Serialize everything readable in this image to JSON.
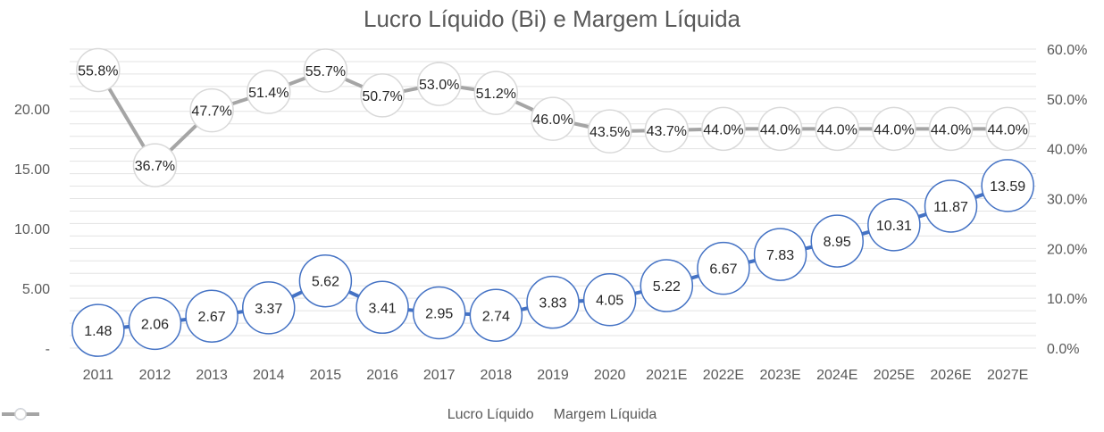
{
  "chart_data": {
    "type": "line",
    "title": "Lucro Líquido (Bi) e Margem Líquida",
    "categories": [
      "2011",
      "2012",
      "2013",
      "2014",
      "2015",
      "2016",
      "2017",
      "2018",
      "2019",
      "2020",
      "2021E",
      "2022E",
      "2023E",
      "2024E",
      "2025E",
      "2026E",
      "2027E"
    ],
    "series": [
      {
        "name": "Lucro Líquido",
        "axis": "left",
        "color": "#4472C4",
        "values": [
          1.48,
          2.06,
          2.67,
          3.37,
          5.62,
          3.41,
          2.95,
          2.74,
          3.83,
          4.05,
          5.22,
          6.67,
          7.83,
          8.95,
          10.31,
          11.87,
          13.59
        ],
        "labels": [
          "1.48",
          "2.06",
          "2.67",
          "3.37",
          "5.62",
          "3.41",
          "2.95",
          "2.74",
          "3.83",
          "4.05",
          "5.22",
          "6.67",
          "7.83",
          "8.95",
          "10.31",
          "11.87",
          "13.59"
        ]
      },
      {
        "name": "Margem Líquida",
        "axis": "right",
        "color": "#A5A5A5",
        "values": [
          55.8,
          36.7,
          47.7,
          51.4,
          55.7,
          50.7,
          53.0,
          51.2,
          46.0,
          43.5,
          43.7,
          44.0,
          44.0,
          44.0,
          44.0,
          44.0,
          44.0
        ],
        "labels": [
          "55.8%",
          "36.7%",
          "47.7%",
          "51.4%",
          "55.7%",
          "50.7%",
          "53.0%",
          "51.2%",
          "46.0%",
          "43.5%",
          "43.7%",
          "44.0%",
          "44.0%",
          "44.0%",
          "44.0%",
          "44.0%",
          "44.0%"
        ]
      }
    ],
    "y_left": {
      "min": 0,
      "max": 25,
      "ticks": [
        0,
        5,
        10,
        15,
        20
      ],
      "tick_labels": [
        "-",
        "5.00",
        "10.00",
        "15.00",
        "20.00"
      ]
    },
    "y_right": {
      "min": 0,
      "max": 60,
      "ticks": [
        0,
        10,
        20,
        30,
        40,
        50,
        60
      ],
      "tick_labels": [
        "0.0%",
        "10.0%",
        "20.0%",
        "30.0%",
        "40.0%",
        "50.0%",
        "60.0%"
      ]
    },
    "grid": true,
    "legend_position": "bottom"
  }
}
